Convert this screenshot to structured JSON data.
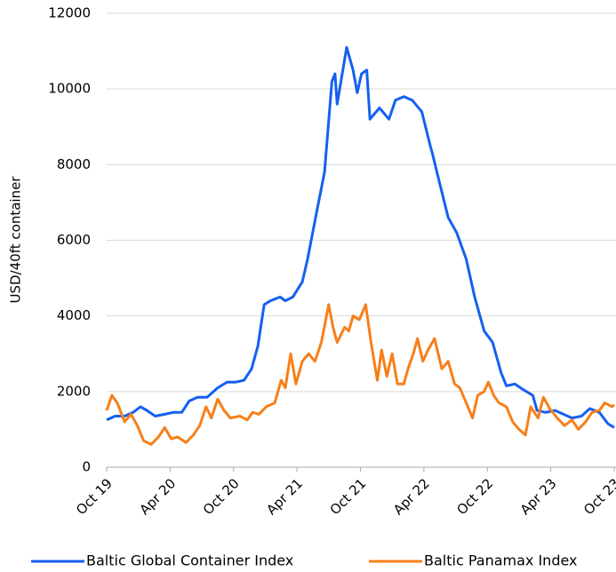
{
  "chart_data": {
    "type": "line",
    "ylabel": "USD/40ft container",
    "xlim": [
      0,
      48
    ],
    "xticks": [
      {
        "value": 0,
        "label": "Oct 19"
      },
      {
        "value": 6,
        "label": "Apr 20"
      },
      {
        "value": 12,
        "label": "Oct 20"
      },
      {
        "value": 18,
        "label": "Apr 21"
      },
      {
        "value": 24,
        "label": "Oct 21"
      },
      {
        "value": 30,
        "label": "Apr 22"
      },
      {
        "value": 36,
        "label": "Oct 22"
      },
      {
        "value": 42,
        "label": "Apr 23"
      },
      {
        "value": 48,
        "label": "Oct 23"
      }
    ],
    "ylim": [
      0,
      12000
    ],
    "yticks": [
      0,
      2000,
      4000,
      6000,
      8000,
      10000,
      12000
    ],
    "grid": true,
    "legend": "bottom",
    "series": [
      {
        "name": "Baltic Global Container Index",
        "color": "#1560f0",
        "x": [
          0,
          0.8,
          1.7,
          2.5,
          3.2,
          3.8,
          4.6,
          5.5,
          6.3,
          7.1,
          7.8,
          8.6,
          9.5,
          10.5,
          11.4,
          12.2,
          13.0,
          13.7,
          14.3,
          14.9,
          15.5,
          16.4,
          16.9,
          17.6,
          18.5,
          19.0,
          19.9,
          20.6,
          21.3,
          21.6,
          21.8,
          22.7,
          23.3,
          23.7,
          24.1,
          24.6,
          24.9,
          25.8,
          26.7,
          27.3,
          28.1,
          28.9,
          29.8,
          30.6,
          30.8,
          31.5,
          32.3,
          33.1,
          34.0,
          34.8,
          35.7,
          36.5,
          37.3,
          37.8,
          38.6,
          39.4,
          40.3,
          40.7,
          41.5,
          42.4,
          43.2,
          44.0,
          44.9,
          45.7,
          46.6,
          47.4,
          48.0
        ],
        "values": [
          1250,
          1350,
          1350,
          1450,
          1600,
          1500,
          1350,
          1400,
          1450,
          1450,
          1750,
          1850,
          1850,
          2100,
          2250,
          2250,
          2300,
          2600,
          3200,
          4300,
          4400,
          4500,
          4400,
          4500,
          4900,
          5500,
          6800,
          7800,
          10200,
          10400,
          9600,
          11100,
          10500,
          9900,
          10400,
          10500,
          9200,
          9500,
          9200,
          9700,
          9800,
          9700,
          9400,
          8500,
          8300,
          7500,
          6600,
          6200,
          5500,
          4500,
          3600,
          3300,
          2500,
          2150,
          2200,
          2050,
          1900,
          1500,
          1450,
          1500,
          1400,
          1300,
          1350,
          1550,
          1450,
          1150,
          1050
        ]
      },
      {
        "name": "Baltic Panamax Index",
        "color": "#f77f1a",
        "x": [
          0,
          0.5,
          1.0,
          1.7,
          2.3,
          2.9,
          3.5,
          4.2,
          4.9,
          5.5,
          6.1,
          6.7,
          7.5,
          8.2,
          8.8,
          9.4,
          9.9,
          10.5,
          11.1,
          11.7,
          12.6,
          13.3,
          13.8,
          14.4,
          15.1,
          15.9,
          16.5,
          16.9,
          17.4,
          17.9,
          18.5,
          19.1,
          19.7,
          20.3,
          21.0,
          21.4,
          21.8,
          22.5,
          22.9,
          23.3,
          23.9,
          24.5,
          25.0,
          25.6,
          26.0,
          26.5,
          27.0,
          27.5,
          28.1,
          28.5,
          29.0,
          29.4,
          29.9,
          30.4,
          31.0,
          31.7,
          32.3,
          32.9,
          33.4,
          34.0,
          34.6,
          35.1,
          35.7,
          36.1,
          36.6,
          37.1,
          37.8,
          38.4,
          39.0,
          39.6,
          40.1,
          40.8,
          41.3,
          41.9,
          42.6,
          43.3,
          44.0,
          44.6,
          45.3,
          45.9,
          46.6,
          47.1,
          47.8,
          48.0
        ],
        "values": [
          1500,
          1900,
          1700,
          1200,
          1400,
          1100,
          700,
          600,
          800,
          1050,
          750,
          800,
          650,
          850,
          1100,
          1600,
          1300,
          1800,
          1500,
          1300,
          1350,
          1250,
          1450,
          1400,
          1600,
          1700,
          2300,
          2100,
          3000,
          2200,
          2800,
          3000,
          2800,
          3300,
          4300,
          3700,
          3300,
          3700,
          3600,
          4000,
          3900,
          4300,
          3300,
          2300,
          3100,
          2400,
          3000,
          2200,
          2200,
          2600,
          3000,
          3400,
          2800,
          3100,
          3400,
          2600,
          2800,
          2200,
          2100,
          1700,
          1300,
          1900,
          2000,
          2250,
          1900,
          1700,
          1600,
          1200,
          1000,
          850,
          1600,
          1300,
          1850,
          1550,
          1300,
          1100,
          1250,
          1000,
          1200,
          1450,
          1500,
          1700,
          1600,
          1650
        ]
      }
    ]
  }
}
